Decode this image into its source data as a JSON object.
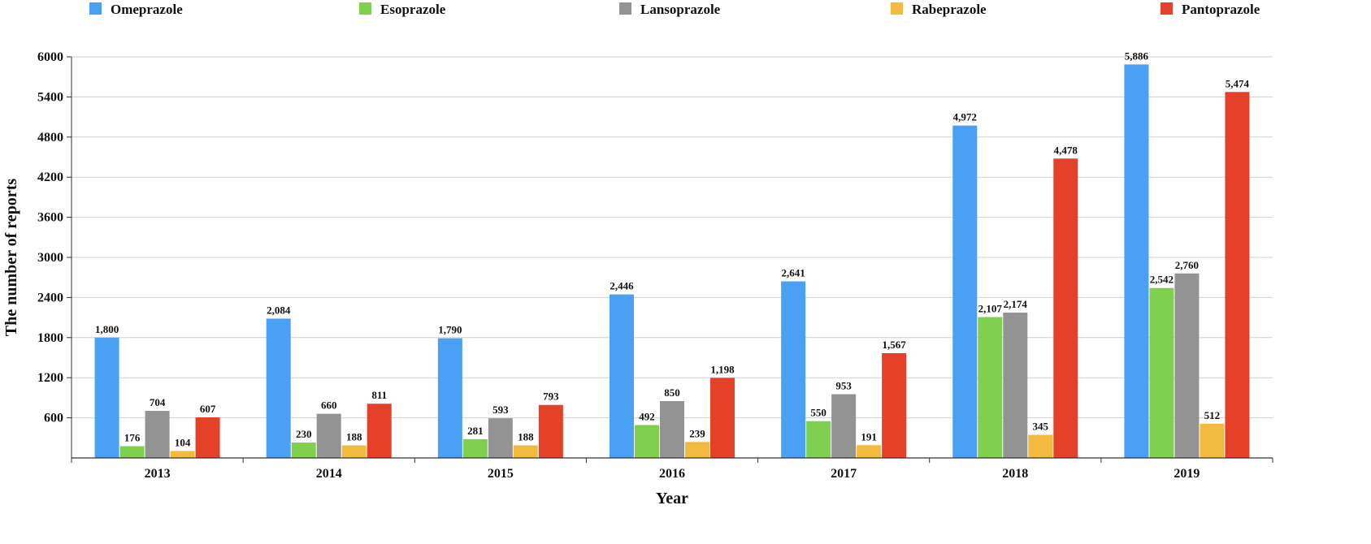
{
  "chart_data": {
    "type": "bar",
    "categories": [
      "2013",
      "2014",
      "2015",
      "2016",
      "2017",
      "2018",
      "2019"
    ],
    "series": [
      {
        "name": "Omeprazole",
        "color": "#4aa0f5",
        "values": [
          1800,
          2084,
          1790,
          2446,
          2641,
          4972,
          5886
        ],
        "labels": [
          "1,800",
          "2,084",
          "1,790",
          "2,446",
          "2,641",
          "4,972",
          "5,886"
        ]
      },
      {
        "name": "Esoprazole",
        "color": "#7ed04e",
        "values": [
          176,
          230,
          281,
          492,
          550,
          2107,
          2542
        ],
        "labels": [
          "176",
          "230",
          "281",
          "492",
          "550",
          "2,107",
          "2,542"
        ]
      },
      {
        "name": "Lansoprazole",
        "color": "#939393",
        "values": [
          704,
          660,
          593,
          850,
          953,
          2174,
          2760
        ],
        "labels": [
          "704",
          "660",
          "593",
          "850",
          "953",
          "2,174",
          "2,760"
        ]
      },
      {
        "name": "Rabeprazole",
        "color": "#f2bb40",
        "values": [
          104,
          188,
          188,
          239,
          191,
          345,
          512
        ],
        "labels": [
          "104",
          "188",
          "188",
          "239",
          "191",
          "345",
          "512"
        ]
      },
      {
        "name": "Pantoprazole",
        "color": "#e54128",
        "values": [
          607,
          811,
          793,
          1198,
          1567,
          4478,
          5474
        ],
        "labels": [
          "607",
          "811",
          "793",
          "1,198",
          "1,567",
          "4,478",
          "5,474"
        ]
      }
    ],
    "title": "",
    "xlabel": "Year",
    "ylabel": "The number of reports",
    "ylim": [
      0,
      6000
    ],
    "yticks": [
      600,
      1200,
      1800,
      2400,
      3000,
      3600,
      4200,
      4800,
      5400,
      6000
    ],
    "grid": true,
    "legend_position": "top"
  }
}
